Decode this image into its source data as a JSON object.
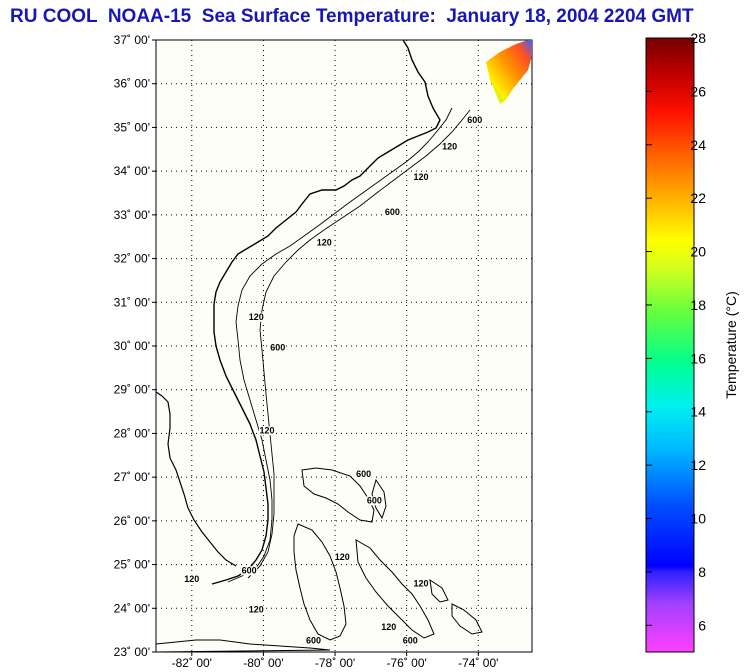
{
  "title": "RU COOL  NOAA-15  Sea Surface Temperature:  January 18, 2004 2204 GMT",
  "map": {
    "lon_range": [
      -83,
      -72.5
    ],
    "lat_range": [
      23,
      37
    ],
    "lat_labels": [
      "37˚ 00'",
      "36˚ 00'",
      "35˚ 00'",
      "34˚ 00'",
      "33˚ 00'",
      "32˚ 00'",
      "31˚ 00'",
      "30˚ 00'",
      "29˚ 00'",
      "28˚ 00'",
      "27˚ 00'",
      "26˚ 00'",
      "25˚ 00'",
      "24˚ 00'",
      "23˚ 00'"
    ],
    "lat_values": [
      37,
      36,
      35,
      34,
      33,
      32,
      31,
      30,
      29,
      28,
      27,
      26,
      25,
      24,
      23
    ],
    "lon_labels": [
      "-82˚ 00'",
      "-80˚ 00'",
      "-78˚ 00'",
      "-76˚ 00'",
      "-74˚ 00'"
    ],
    "lon_values": [
      -82,
      -80,
      -78,
      -76,
      -74
    ],
    "grid": "dotted",
    "background_color": "#fefef8",
    "contour_labels": [
      {
        "text": "600",
        "lon": -74.1,
        "lat": 35.1
      },
      {
        "text": "120",
        "lon": -74.8,
        "lat": 34.5
      },
      {
        "text": "120",
        "lon": -75.6,
        "lat": 33.8
      },
      {
        "text": "600",
        "lon": -76.4,
        "lat": 33.0
      },
      {
        "text": "120",
        "lon": -78.3,
        "lat": 32.3
      },
      {
        "text": "120",
        "lon": -80.2,
        "lat": 30.6
      },
      {
        "text": "600",
        "lon": -79.6,
        "lat": 29.9
      },
      {
        "text": "120",
        "lon": -79.9,
        "lat": 28.0
      },
      {
        "text": "600",
        "lon": -77.2,
        "lat": 27.0
      },
      {
        "text": "600",
        "lon": -76.9,
        "lat": 26.4
      },
      {
        "text": "120",
        "lon": -77.8,
        "lat": 25.1
      },
      {
        "text": "120",
        "lon": -75.6,
        "lat": 24.5
      },
      {
        "text": "600",
        "lon": -80.4,
        "lat": 24.8
      },
      {
        "text": "120",
        "lon": -82.0,
        "lat": 24.6
      },
      {
        "text": "120",
        "lon": -80.2,
        "lat": 23.9
      },
      {
        "text": "120",
        "lon": -76.5,
        "lat": 23.5
      },
      {
        "text": "600",
        "lon": -78.6,
        "lat": 23.2
      },
      {
        "text": "600",
        "lon": -75.9,
        "lat": 23.2
      }
    ],
    "sst_patch": {
      "value_range_c": [
        18,
        25
      ],
      "location": "top-right near -73.5, 36.5"
    }
  },
  "colorbar": {
    "title": "Temperature (°C)",
    "min": 5,
    "max": 28,
    "tick_labels": [
      "28",
      "26",
      "24",
      "22",
      "20",
      "18",
      "16",
      "14",
      "12",
      "10",
      "8",
      "6"
    ],
    "tick_values": [
      28,
      26,
      24,
      22,
      20,
      18,
      16,
      14,
      12,
      10,
      8,
      6
    ],
    "colors": [
      "#ff3fff",
      "#c040ff",
      "#7f40ff",
      "#0000ff",
      "#0055ff",
      "#00a0ff",
      "#00eeff",
      "#00ffaa",
      "#40ff40",
      "#a0ff20",
      "#ffff00",
      "#ffc000",
      "#ff8000",
      "#ff2000",
      "#d00000",
      "#800000"
    ]
  }
}
